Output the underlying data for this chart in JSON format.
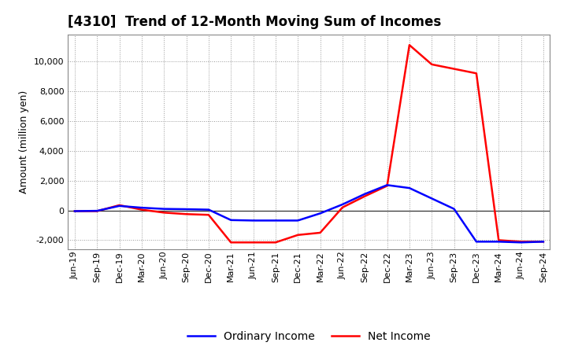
{
  "title": "[4310]  Trend of 12-Month Moving Sum of Incomes",
  "ylabel": "Amount (million yen)",
  "ylim": [
    -2600,
    11800
  ],
  "yticks": [
    -2000,
    0,
    2000,
    4000,
    6000,
    8000,
    10000
  ],
  "background_color": "#ffffff",
  "plot_background": "#ffffff",
  "grid_color": "#999999",
  "x_labels": [
    "Jun-19",
    "Sep-19",
    "Dec-19",
    "Mar-20",
    "Jun-20",
    "Sep-20",
    "Dec-20",
    "Mar-21",
    "Jun-21",
    "Sep-21",
    "Dec-21",
    "Mar-22",
    "Jun-22",
    "Sep-22",
    "Dec-22",
    "Mar-23",
    "Jun-23",
    "Sep-23",
    "Dec-23",
    "Mar-24",
    "Jun-24",
    "Sep-24"
  ],
  "ordinary_income": [
    -50,
    -30,
    300,
    180,
    100,
    80,
    50,
    -650,
    -680,
    -680,
    -680,
    -200,
    400,
    1100,
    1700,
    1500,
    800,
    100,
    -2100,
    -2100,
    -2150,
    -2100
  ],
  "net_income": [
    -50,
    -50,
    350,
    50,
    -150,
    -250,
    -300,
    -2150,
    -2150,
    -2150,
    -1650,
    -1500,
    200,
    950,
    1650,
    11100,
    9800,
    9500,
    9200,
    -2000,
    -2100,
    -2100
  ],
  "ordinary_color": "#0000ff",
  "net_color": "#ff0000",
  "line_width": 1.8,
  "title_fontsize": 12,
  "legend_fontsize": 10,
  "tick_fontsize": 8,
  "ylabel_fontsize": 9
}
